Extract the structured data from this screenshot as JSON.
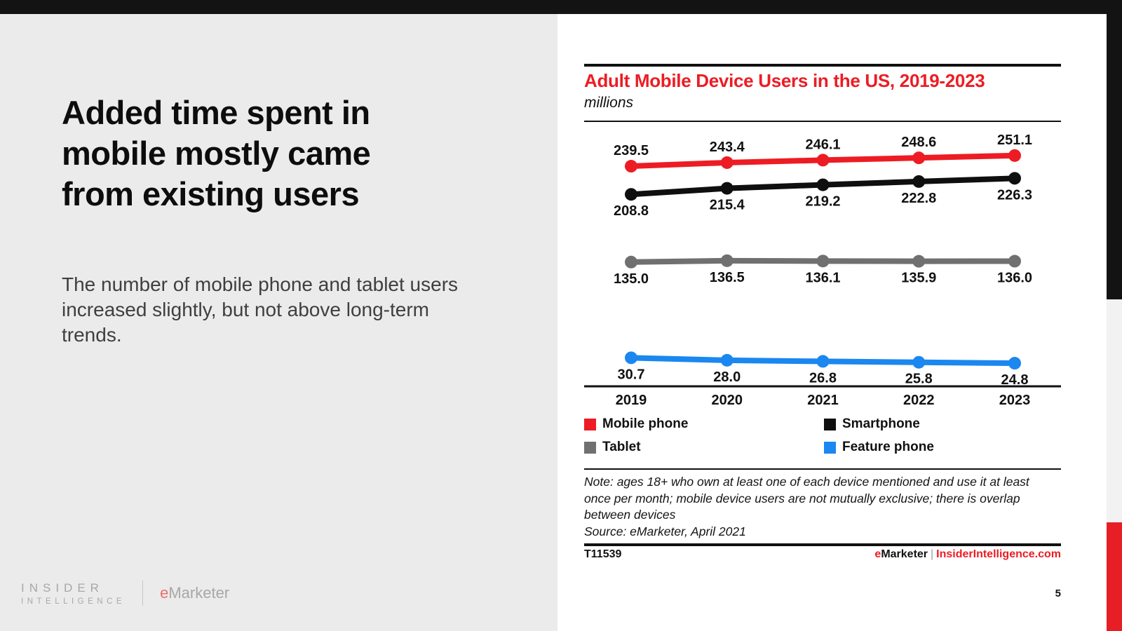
{
  "slide": {
    "headline": "Added time spent in mobile mostly came from existing users",
    "body": "The number of mobile phone and tablet users increased slightly, but not above long-term trends.",
    "page_number": "5"
  },
  "branding": {
    "insider_line1": "INSIDER",
    "insider_line2": "INTELLIGENCE",
    "emarketer_e": "e",
    "emarketer_rest": "Marketer"
  },
  "chart": {
    "title": "Adult Mobile Device Users in the US, 2019-2023",
    "subtitle": "millions",
    "note": "Note: ages 18+ who own at least one of each device mentioned and use it at least once per month; mobile device users are not mutually exclusive; there is overlap between devices",
    "source": "Source: eMarketer, April 2021",
    "footer_id": "T11539",
    "footer_brand_e": "e",
    "footer_brand_rest": "Marketer",
    "footer_divider": "|",
    "footer_site": "InsiderIntelligence.com"
  },
  "chart_data": {
    "type": "line",
    "title": "Adult Mobile Device Users in the US, 2019-2023",
    "unit_label": "millions",
    "x": [
      "2019",
      "2020",
      "2021",
      "2022",
      "2023"
    ],
    "series": [
      {
        "name": "Mobile phone",
        "color": "#ed1c24",
        "values": [
          239.5,
          243.4,
          246.1,
          248.6,
          251.1
        ],
        "label_position": "above"
      },
      {
        "name": "Smartphone",
        "color": "#0f0f0f",
        "values": [
          208.8,
          215.4,
          219.2,
          222.8,
          226.3
        ],
        "label_position": "below"
      },
      {
        "name": "Tablet",
        "color": "#707070",
        "values": [
          135.0,
          136.5,
          136.1,
          135.9,
          136.0
        ],
        "label_position": "below"
      },
      {
        "name": "Feature phone",
        "color": "#1b87f0",
        "values": [
          30.7,
          28.0,
          26.8,
          25.8,
          24.8
        ],
        "label_position": "below"
      }
    ],
    "data_labels": true,
    "grid": false,
    "legend_position": "bottom",
    "y_axis_shown": false
  },
  "colors": {
    "accent_red": "#ed1c24",
    "top_bar": "#131313",
    "panel_gray": "#ebebeb",
    "strip_gray": "#f2f2f2",
    "strip_red": "#e81e26",
    "body_text": "#3f3f3f",
    "logo_gray": "#a9a7a7",
    "logo_red": "#e8716a",
    "divider_gray": "#9a9a9a"
  }
}
